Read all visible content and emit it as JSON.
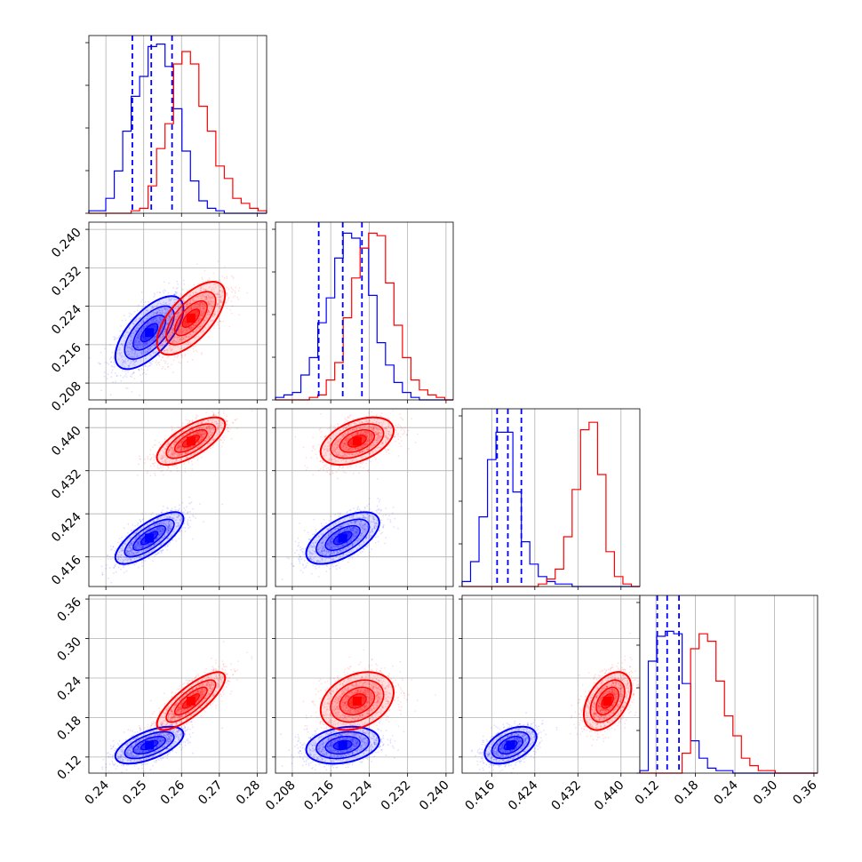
{
  "chart_data": {
    "type": "corner",
    "parameters": 4,
    "colors": {
      "blue": "#0000ff",
      "red": "#ff0000"
    },
    "grid": true,
    "series": [
      {
        "color": "blue",
        "mean": [
          0.2515,
          0.2185,
          0.4195,
          0.138
        ],
        "sd": [
          0.0045,
          0.0038,
          0.0024,
          0.014
        ],
        "quantiles": [
          [
            0.247,
            0.252,
            0.2575
          ],
          [
            0.2135,
            0.2185,
            0.2225
          ],
          [
            0.417,
            0.419,
            0.4215
          ],
          [
            0.122,
            0.137,
            0.155
          ]
        ]
      },
      {
        "color": "red",
        "mean": [
          0.2625,
          0.2215,
          0.4375,
          0.205
        ],
        "sd": [
          0.0045,
          0.0038,
          0.0022,
          0.022
        ]
      }
    ],
    "correlations": [
      {
        "pair": [
          1,
          0
        ],
        "blue": 0.65,
        "red": 0.65
      },
      {
        "pair": [
          2,
          0
        ],
        "blue": 0.75,
        "red": 0.7
      },
      {
        "pair": [
          2,
          1
        ],
        "blue": 0.6,
        "red": 0.45
      },
      {
        "pair": [
          3,
          0
        ],
        "blue": 0.6,
        "red": 0.8
      },
      {
        "pair": [
          3,
          1
        ],
        "blue": 0.25,
        "red": 0.3
      },
      {
        "pair": [
          3,
          2
        ],
        "blue": 0.45,
        "red": 0.45
      }
    ],
    "axes": [
      {
        "lim": [
          0.2355,
          0.2825
        ],
        "ticks": [
          0.24,
          0.25,
          0.26,
          0.27,
          0.28
        ],
        "tick_labels": [
          "0.24",
          "0.25",
          "0.26",
          "0.27",
          "0.28"
        ]
      },
      {
        "lim": [
          0.2045,
          0.2415
        ],
        "ticks": [
          0.208,
          0.216,
          0.224,
          0.232,
          0.24
        ],
        "tick_labels": [
          "0.208",
          "0.216",
          "0.224",
          "0.232",
          "0.240"
        ]
      },
      {
        "lim": [
          0.4105,
          0.4435
        ],
        "ticks": [
          0.416,
          0.424,
          0.432,
          0.44
        ],
        "tick_labels": [
          "0.416",
          "0.424",
          "0.432",
          "0.440"
        ]
      },
      {
        "lim": [
          0.0955,
          0.3655
        ],
        "ticks": [
          0.12,
          0.18,
          0.24,
          0.3,
          0.36
        ],
        "tick_labels": [
          "0.12",
          "0.18",
          "0.24",
          "0.30",
          "0.36"
        ]
      }
    ],
    "histograms": [
      {
        "blue": [
          1,
          1,
          6,
          17,
          33,
          47,
          55,
          67,
          68,
          59,
          42,
          25,
          13,
          5,
          2,
          1,
          0,
          0,
          0,
          0,
          0
        ],
        "red": [
          0,
          0,
          0,
          0,
          0,
          1,
          2,
          11,
          26,
          36,
          60,
          65,
          60,
          43,
          33,
          19,
          14,
          6,
          4,
          2,
          1
        ]
      },
      {
        "blue": [
          1,
          2,
          3,
          10,
          17,
          31,
          41,
          57,
          67,
          65,
          61,
          42,
          23,
          14,
          7,
          3,
          1,
          0,
          0,
          0,
          0
        ],
        "red": [
          0,
          0,
          0,
          0,
          1,
          2,
          8,
          15,
          33,
          49,
          61,
          67,
          66,
          47,
          30,
          17,
          8,
          4,
          2,
          1,
          0
        ]
      },
      {
        "blue": [
          2,
          10,
          28,
          51,
          62,
          62,
          38,
          18,
          9,
          4,
          2,
          1,
          1,
          0,
          0,
          0,
          0,
          0,
          0,
          0,
          0
        ],
        "red": [
          0,
          0,
          0,
          0,
          0,
          0,
          0,
          0,
          0,
          1,
          3,
          7,
          20,
          39,
          63,
          66,
          45,
          14,
          4,
          1,
          0
        ]
      },
      {
        "blue": [
          1,
          45,
          55,
          57,
          56,
          36,
          13,
          6,
          2,
          1,
          1,
          0,
          0,
          0,
          0,
          0,
          0,
          0,
          0,
          0,
          0
        ],
        "red": [
          0,
          0,
          0,
          0,
          0,
          8,
          50,
          56,
          53,
          37,
          23,
          15,
          6,
          3,
          1,
          1,
          0,
          0,
          0,
          0,
          0
        ]
      }
    ]
  }
}
